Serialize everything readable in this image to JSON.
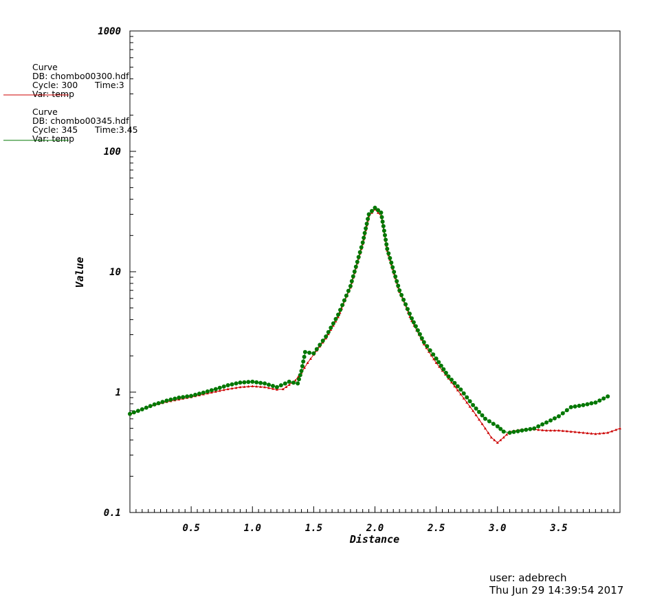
{
  "legend": [
    {
      "title": "Curve",
      "db": "DB: chombo00300.hdf",
      "cycle": "Cycle: 300",
      "time": "Time:3",
      "var": "Var: temp",
      "color": "#cc0000"
    },
    {
      "title": "Curve",
      "db": "DB: chombo00345.hdf",
      "cycle": "Cycle: 345",
      "time": "Time:3.45",
      "var": "Var: temp",
      "color": "#007700"
    }
  ],
  "footer": {
    "user": "user: adebrech",
    "timestamp": "Thu Jun 29 14:39:54 2017"
  },
  "chart_data": {
    "type": "line",
    "xlabel": "Distance",
    "ylabel": "Value",
    "xlim": [
      0,
      4.0
    ],
    "ylim": [
      0.1,
      1000
    ],
    "yscale": "log",
    "grid": false,
    "xticks": [
      "0.5",
      "1.0",
      "1.5",
      "2.0",
      "2.5",
      "3.0",
      "3.5"
    ],
    "xtick_values": [
      0.5,
      1.0,
      1.5,
      2.0,
      2.5,
      3.0,
      3.5
    ],
    "yticks": [
      "0.1",
      "1",
      "10",
      "100",
      "1000"
    ],
    "ytick_values": [
      0.1,
      1,
      10,
      100,
      1000
    ],
    "series": [
      {
        "color": "#cc0000",
        "marker": "triangle",
        "x": [
          0.0,
          0.1,
          0.2,
          0.3,
          0.4,
          0.5,
          0.6,
          0.7,
          0.8,
          0.9,
          1.0,
          1.1,
          1.2,
          1.25,
          1.3,
          1.35,
          1.4,
          1.45,
          1.5,
          1.6,
          1.7,
          1.8,
          1.9,
          1.95,
          2.0,
          2.05,
          2.1,
          2.2,
          2.3,
          2.4,
          2.5,
          2.6,
          2.7,
          2.8,
          2.9,
          2.95,
          3.0,
          3.05,
          3.1,
          3.2,
          3.3,
          3.4,
          3.5,
          3.6,
          3.7,
          3.8,
          3.9,
          4.0
        ],
        "y": [
          0.65,
          0.72,
          0.78,
          0.83,
          0.87,
          0.91,
          0.96,
          1.01,
          1.06,
          1.1,
          1.12,
          1.1,
          1.05,
          1.06,
          1.15,
          1.25,
          1.45,
          1.75,
          2.05,
          2.8,
          4.2,
          7.4,
          17,
          29,
          33,
          29,
          15,
          6.8,
          3.9,
          2.5,
          1.75,
          1.3,
          0.96,
          0.7,
          0.5,
          0.42,
          0.38,
          0.42,
          0.47,
          0.49,
          0.49,
          0.48,
          0.48,
          0.47,
          0.46,
          0.45,
          0.46,
          0.5
        ]
      },
      {
        "color": "#007700",
        "marker": "circle",
        "x": [
          0.0,
          0.1,
          0.2,
          0.3,
          0.4,
          0.5,
          0.6,
          0.7,
          0.8,
          0.9,
          1.0,
          1.1,
          1.2,
          1.3,
          1.37,
          1.4,
          1.43,
          1.5,
          1.6,
          1.7,
          1.8,
          1.9,
          1.95,
          2.0,
          2.05,
          2.1,
          2.2,
          2.3,
          2.4,
          2.5,
          2.6,
          2.7,
          2.8,
          2.9,
          3.0,
          3.05,
          3.1,
          3.2,
          3.3,
          3.4,
          3.5,
          3.6,
          3.7,
          3.8,
          3.9
        ],
        "y": [
          0.66,
          0.72,
          0.79,
          0.85,
          0.9,
          0.93,
          0.99,
          1.06,
          1.14,
          1.2,
          1.22,
          1.18,
          1.1,
          1.22,
          1.18,
          1.5,
          2.15,
          2.1,
          2.9,
          4.4,
          7.6,
          17.5,
          30,
          34,
          31,
          15.5,
          7.0,
          4.1,
          2.6,
          1.9,
          1.35,
          1.05,
          0.78,
          0.6,
          0.52,
          0.47,
          0.46,
          0.48,
          0.5,
          0.56,
          0.63,
          0.75,
          0.78,
          0.82,
          0.92
        ]
      }
    ]
  }
}
